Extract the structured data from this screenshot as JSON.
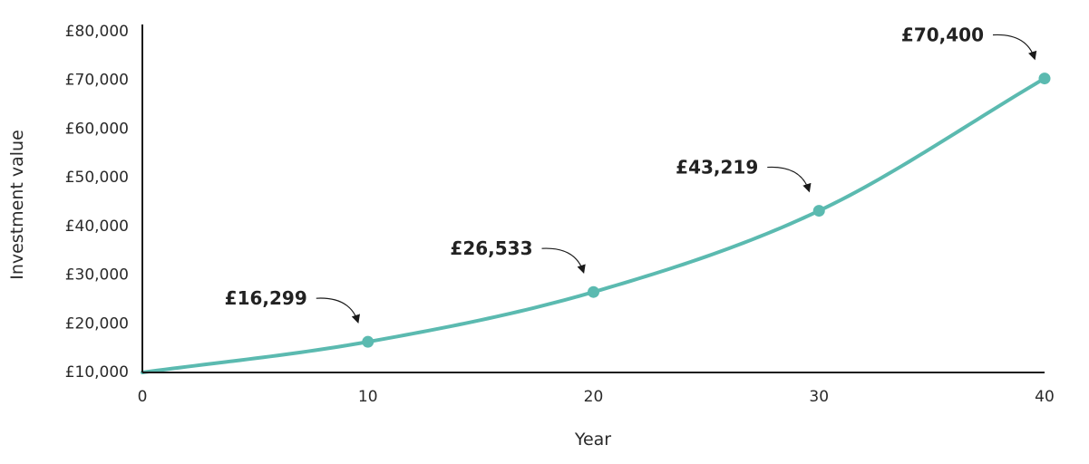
{
  "chart_data": {
    "type": "line",
    "title": "",
    "xlabel": "Year",
    "ylabel": "Investment value",
    "xlim": [
      0,
      40
    ],
    "ylim": [
      10000,
      80000
    ],
    "x_ticks": [
      0,
      10,
      20,
      30,
      40
    ],
    "y_ticks": [
      10000,
      20000,
      30000,
      40000,
      50000,
      60000,
      70000,
      80000
    ],
    "x_tick_labels": [
      "0",
      "10",
      "20",
      "30",
      "40"
    ],
    "y_tick_labels": [
      "£10,000",
      "£20,000",
      "£30,000",
      "£40,000",
      "£50,000",
      "£60,000",
      "£70,000",
      "£80,000"
    ],
    "grid": false,
    "series": [
      {
        "start_value": 10000,
        "end_value": 70400,
        "markers": [
          {
            "x": 10,
            "y": 16299,
            "label": "£16,299"
          },
          {
            "x": 20,
            "y": 26533,
            "label": "£26,533"
          },
          {
            "x": 30,
            "y": 43219,
            "label": "£43,219"
          },
          {
            "x": 40,
            "y": 70400,
            "label": "£70,400"
          }
        ]
      }
    ],
    "colors": {
      "line": "#5bbab0",
      "axis": "#1a1a1a",
      "text": "#2a2a2a"
    }
  }
}
